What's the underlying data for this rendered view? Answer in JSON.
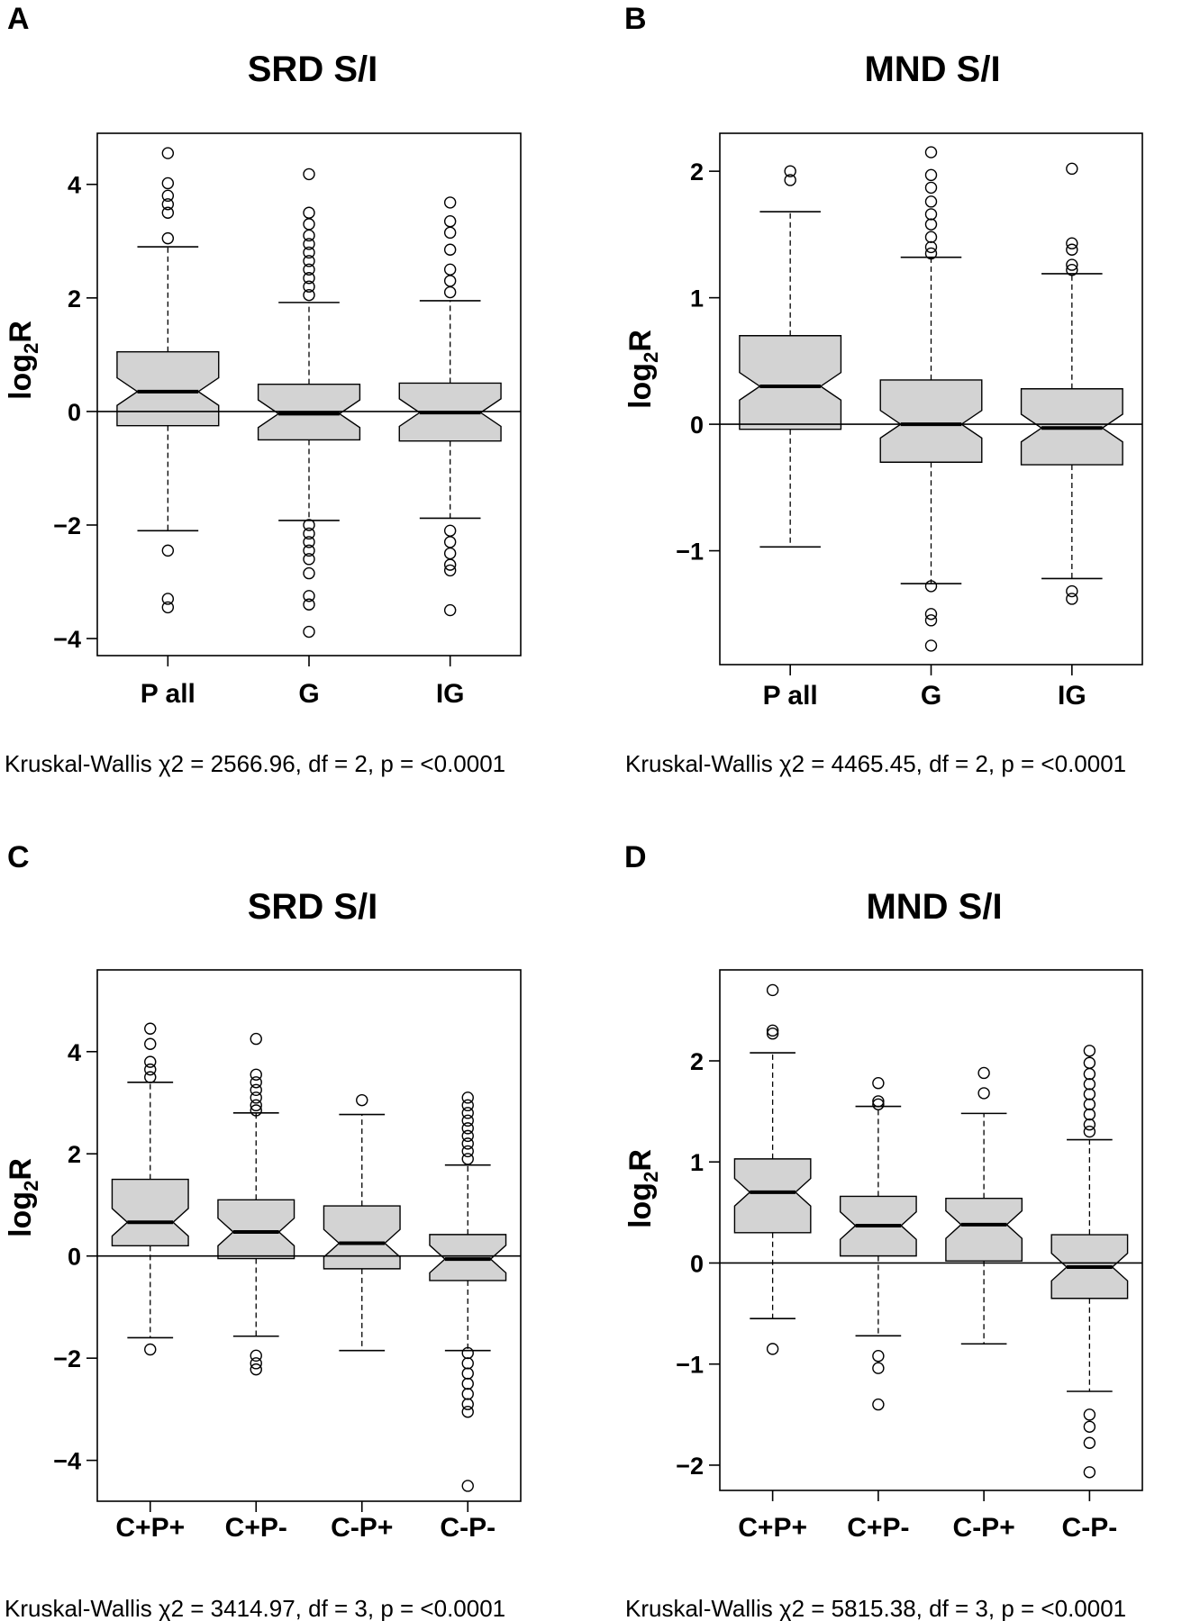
{
  "chart_data": [
    {
      "panel": "A",
      "type": "boxplot",
      "title": "SRD S/I",
      "ylabel": "log2R",
      "ylim": [
        -4.3,
        4.9
      ],
      "yticks": [
        -4,
        -2,
        0,
        2,
        4
      ],
      "ytick_labels": [
        "−4",
        "−2",
        "0",
        "2",
        "4"
      ],
      "reference_line": 0,
      "notched": true,
      "categories": [
        "P all",
        "G",
        "IG"
      ],
      "boxes": [
        {
          "name": "P all",
          "whisker_low": -2.1,
          "q1": -0.25,
          "median": 0.35,
          "q3": 1.05,
          "whisker_high": 2.9,
          "outliers": [
            4.55,
            4.02,
            3.8,
            3.65,
            3.5,
            3.05,
            -2.45,
            -3.3,
            -3.45
          ]
        },
        {
          "name": "G",
          "whisker_low": -1.92,
          "q1": -0.5,
          "median": -0.04,
          "q3": 0.48,
          "whisker_high": 1.92,
          "outliers": [
            4.18,
            3.5,
            3.3,
            3.1,
            2.95,
            2.8,
            2.65,
            2.5,
            2.35,
            2.2,
            2.05,
            -2.0,
            -2.15,
            -2.3,
            -2.45,
            -2.6,
            -2.85,
            -3.25,
            -3.4,
            -3.88
          ]
        },
        {
          "name": "IG",
          "whisker_low": -1.88,
          "q1": -0.52,
          "median": -0.02,
          "q3": 0.5,
          "whisker_high": 1.95,
          "outliers": [
            3.68,
            3.35,
            3.15,
            2.85,
            2.5,
            2.3,
            2.1,
            -2.1,
            -2.3,
            -2.5,
            -2.7,
            -2.8,
            -3.5
          ]
        }
      ],
      "footnote": "Kruskal-Wallis  χ2 = 2566.96, df = 2, p = <0.0001"
    },
    {
      "panel": "B",
      "type": "boxplot",
      "title": "MND S/I",
      "ylabel": "log2R",
      "ylim": [
        -1.9,
        2.3
      ],
      "yticks": [
        -1,
        0,
        1,
        2
      ],
      "ytick_labels": [
        "−1",
        "0",
        "1",
        "2"
      ],
      "reference_line": 0,
      "notched": true,
      "categories": [
        "P all",
        "G",
        "IG"
      ],
      "boxes": [
        {
          "name": "P all",
          "whisker_low": -0.97,
          "q1": -0.04,
          "median": 0.3,
          "q3": 0.7,
          "whisker_high": 1.68,
          "outliers": [
            2.0,
            1.93
          ]
        },
        {
          "name": "G",
          "whisker_low": -1.26,
          "q1": -0.3,
          "median": 0.0,
          "q3": 0.35,
          "whisker_high": 1.32,
          "outliers": [
            2.15,
            1.97,
            1.87,
            1.76,
            1.66,
            1.58,
            1.48,
            1.4,
            1.35,
            -1.28,
            -1.5,
            -1.55,
            -1.75
          ]
        },
        {
          "name": "IG",
          "whisker_low": -1.22,
          "q1": -0.32,
          "median": -0.03,
          "q3": 0.28,
          "whisker_high": 1.19,
          "outliers": [
            2.02,
            1.43,
            1.38,
            1.26,
            1.22,
            -1.32,
            -1.38
          ]
        }
      ],
      "footnote": "Kruskal-Wallis  χ2 = 4465.45, df = 2, p = <0.0001"
    },
    {
      "panel": "C",
      "type": "boxplot",
      "title": "SRD S/I",
      "ylabel": "log2R",
      "ylim": [
        -4.8,
        5.6
      ],
      "yticks": [
        -4,
        -2,
        0,
        2,
        4
      ],
      "ytick_labels": [
        "−4",
        "−2",
        "0",
        "2",
        "4"
      ],
      "reference_line": 0,
      "notched": true,
      "categories": [
        "C+P+",
        "C+P-",
        "C-P+",
        "C-P-"
      ],
      "boxes": [
        {
          "name": "C+P+",
          "whisker_low": -1.6,
          "q1": 0.2,
          "median": 0.66,
          "q3": 1.5,
          "whisker_high": 3.4,
          "outliers": [
            4.45,
            4.15,
            3.8,
            3.65,
            3.5,
            -1.83
          ]
        },
        {
          "name": "C+P-",
          "whisker_low": -1.57,
          "q1": -0.05,
          "median": 0.47,
          "q3": 1.1,
          "whisker_high": 2.8,
          "outliers": [
            4.25,
            3.55,
            3.4,
            3.25,
            3.1,
            2.95,
            2.85,
            -1.95,
            -2.1,
            -2.22
          ]
        },
        {
          "name": "C-P+",
          "whisker_low": -1.85,
          "q1": -0.25,
          "median": 0.25,
          "q3": 0.98,
          "whisker_high": 2.77,
          "outliers": [
            3.05
          ]
        },
        {
          "name": "C-P-",
          "whisker_low": -1.85,
          "q1": -0.48,
          "median": -0.06,
          "q3": 0.42,
          "whisker_high": 1.78,
          "outliers": [
            3.1,
            2.95,
            2.8,
            2.65,
            2.5,
            2.35,
            2.2,
            2.05,
            1.9,
            -1.9,
            -2.1,
            -2.3,
            -2.5,
            -2.7,
            -2.9,
            -3.05,
            -4.5
          ]
        }
      ],
      "footnote": "Kruskal-Wallis χ2 = 3414.97, df = 3, p = <0.0001"
    },
    {
      "panel": "D",
      "type": "boxplot",
      "title": "MND S/I",
      "ylabel": "log2R",
      "ylim": [
        -2.25,
        2.9
      ],
      "yticks": [
        -2,
        -1,
        0,
        1,
        2
      ],
      "ytick_labels": [
        "−2",
        "−1",
        "0",
        "1",
        "2"
      ],
      "reference_line": 0,
      "notched": true,
      "categories": [
        "C+P+",
        "C+P-",
        "C-P+",
        "C-P-"
      ],
      "boxes": [
        {
          "name": "C+P+",
          "whisker_low": -0.55,
          "q1": 0.3,
          "median": 0.7,
          "q3": 1.03,
          "whisker_high": 2.08,
          "outliers": [
            2.7,
            2.3,
            2.27,
            -0.85
          ]
        },
        {
          "name": "C+P-",
          "whisker_low": -0.72,
          "q1": 0.07,
          "median": 0.37,
          "q3": 0.66,
          "whisker_high": 1.55,
          "outliers": [
            1.78,
            1.6,
            1.57,
            -0.92,
            -1.04,
            -1.4
          ]
        },
        {
          "name": "C-P+",
          "whisker_low": -0.8,
          "q1": 0.02,
          "median": 0.38,
          "q3": 0.64,
          "whisker_high": 1.48,
          "outliers": [
            1.88,
            1.68
          ]
        },
        {
          "name": "C-P-",
          "whisker_low": -1.27,
          "q1": -0.35,
          "median": -0.04,
          "q3": 0.28,
          "whisker_high": 1.22,
          "outliers": [
            2.1,
            1.98,
            1.87,
            1.77,
            1.67,
            1.57,
            1.47,
            1.37,
            1.3,
            -1.5,
            -1.62,
            -1.78,
            -2.07
          ]
        }
      ],
      "footnote": "Kruskal-Wallis χ2 = 5815.38, df = 3, p = <0.0001"
    }
  ]
}
